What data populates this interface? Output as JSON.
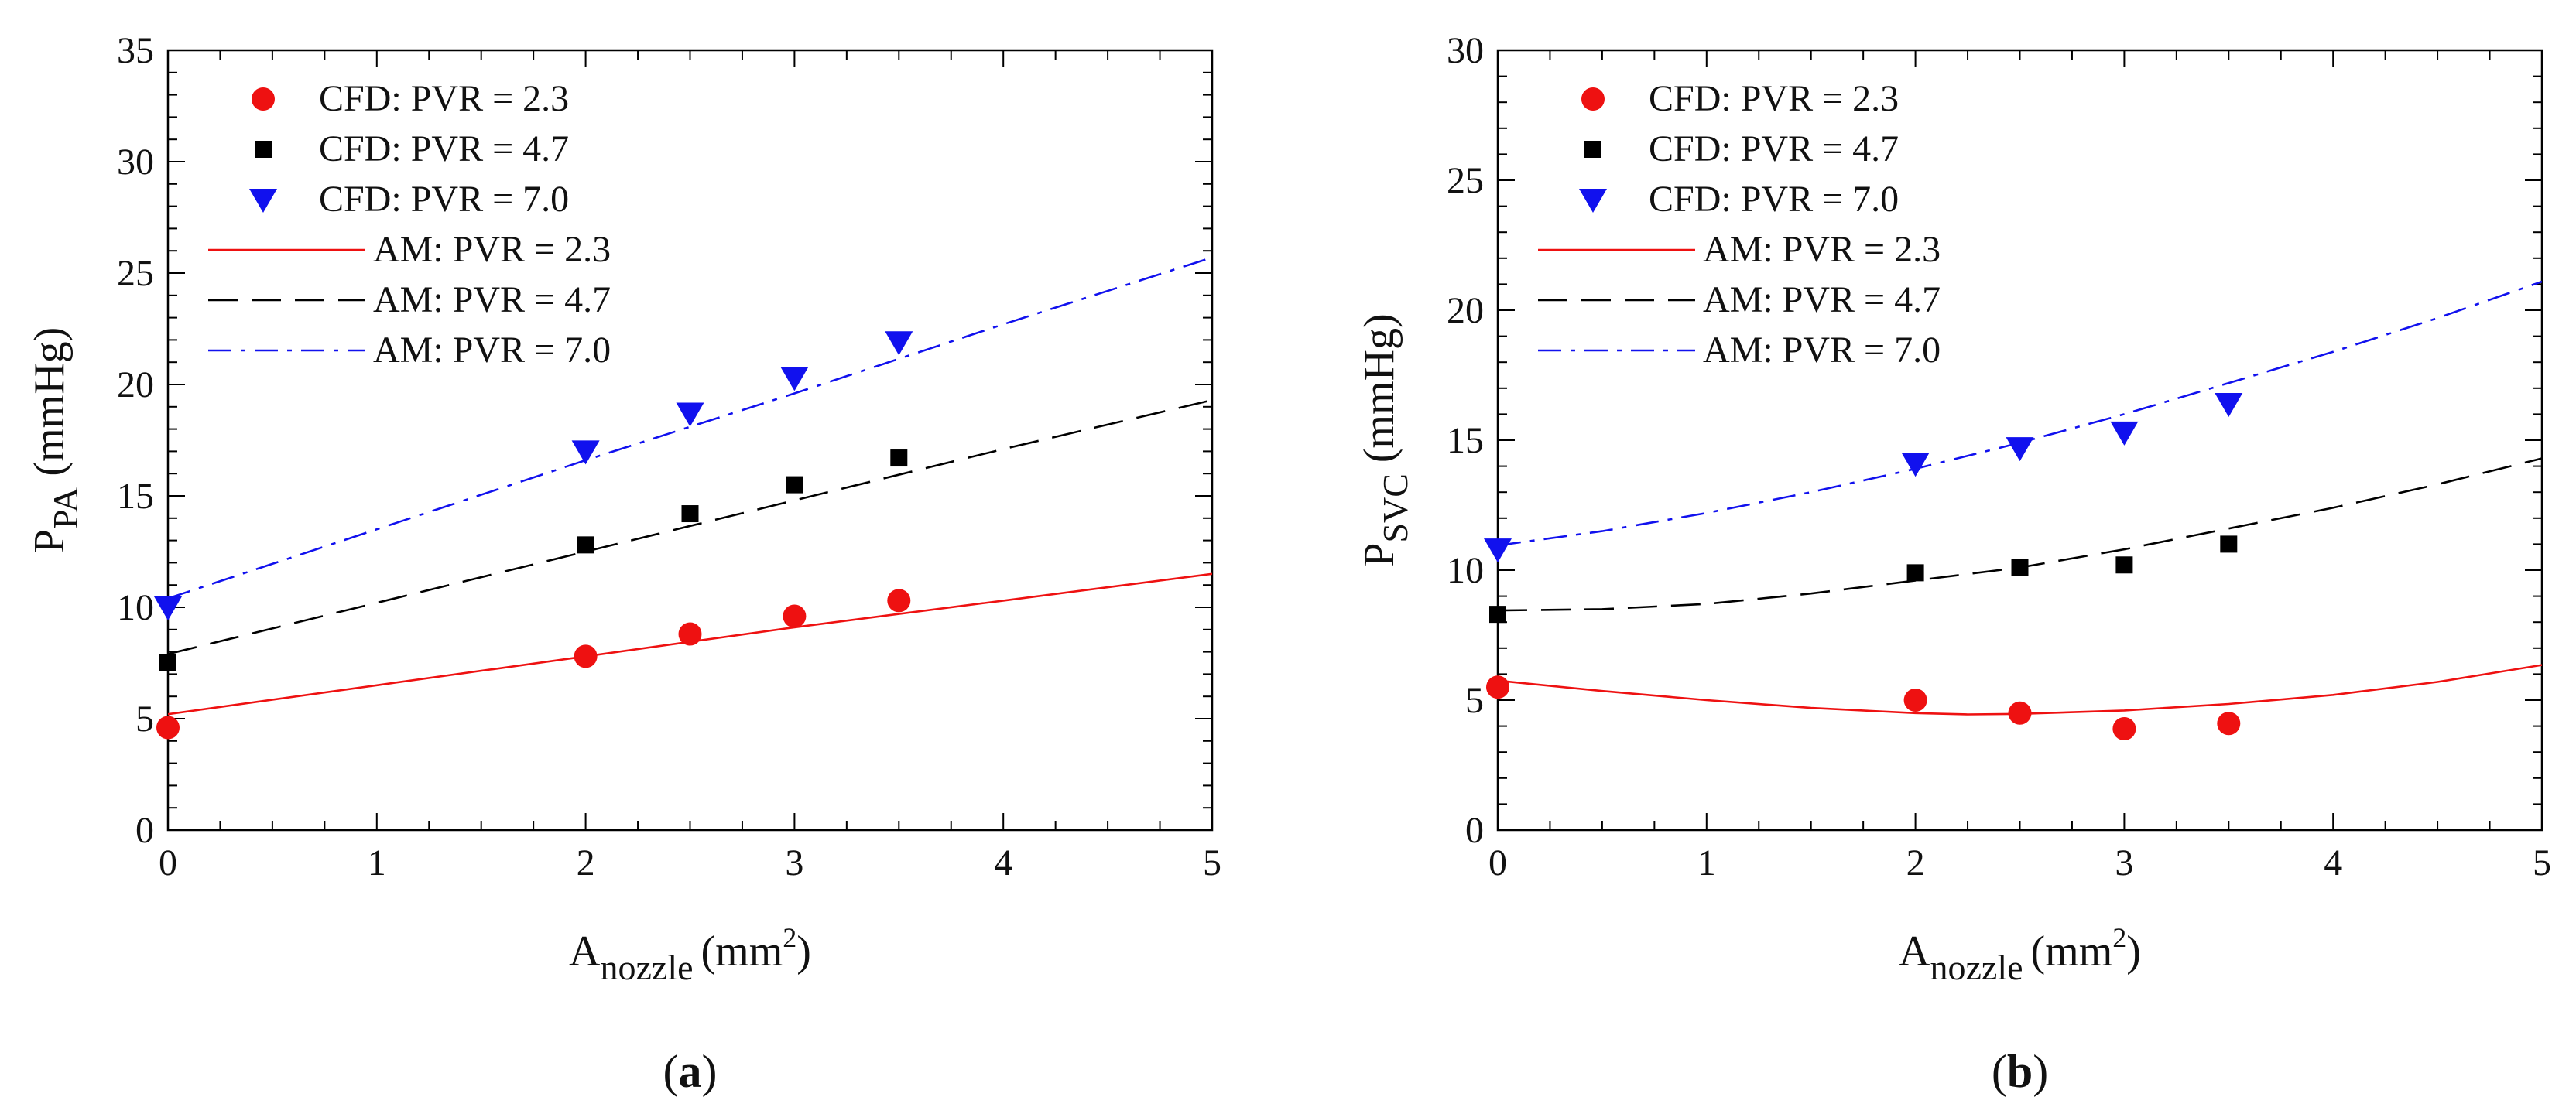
{
  "chart_data": [
    {
      "type": "scatter",
      "panel_label": "a",
      "x_label": {
        "base": "A",
        "sub": "nozzle",
        "unit_open": "(mm",
        "sup": "2",
        "unit_close": ")"
      },
      "y_label": {
        "base": "P",
        "sub": "PA",
        "unit": "(mmHg)"
      },
      "xlim": [
        0,
        5
      ],
      "ylim": [
        0,
        35
      ],
      "x_ticks": [
        0,
        1,
        2,
        3,
        4,
        5
      ],
      "y_ticks": [
        0,
        5,
        10,
        15,
        20,
        25,
        30,
        35
      ],
      "legend_position": "top-left",
      "colors": {
        "pvr23": "#ee1111",
        "pvr47": "#000000",
        "pvr70": "#1111ee"
      },
      "series": [
        {
          "name": "CFD: PVR = 2.3",
          "kind": "points",
          "marker": "circle",
          "color_key": "pvr23",
          "x": [
            0,
            2,
            2.5,
            3,
            3.5
          ],
          "y": [
            4.6,
            7.8,
            8.8,
            9.6,
            10.3
          ]
        },
        {
          "name": "CFD: PVR = 4.7",
          "kind": "points",
          "marker": "square",
          "color_key": "pvr47",
          "x": [
            0,
            2,
            2.5,
            3,
            3.5
          ],
          "y": [
            7.5,
            12.8,
            14.2,
            15.5,
            16.7
          ]
        },
        {
          "name": "CFD: PVR = 7.0",
          "kind": "points",
          "marker": "triangle-down",
          "color_key": "pvr70",
          "x": [
            0,
            2,
            2.5,
            3,
            3.5
          ],
          "y": [
            10.0,
            17.0,
            18.7,
            20.3,
            21.9
          ]
        },
        {
          "name": "AM: PVR = 2.3",
          "kind": "line",
          "dash": "solid",
          "color_key": "pvr23",
          "x": [
            0,
            1,
            2,
            3,
            4,
            5
          ],
          "y": [
            5.2,
            6.5,
            7.8,
            9.1,
            10.3,
            11.5
          ]
        },
        {
          "name": "AM: PVR = 4.7",
          "kind": "line",
          "dash": "dashed",
          "color_key": "pvr47",
          "x": [
            0,
            1,
            2,
            3,
            4,
            5
          ],
          "y": [
            7.9,
            10.2,
            12.5,
            14.8,
            17.1,
            19.3
          ]
        },
        {
          "name": "AM: PVR = 7.0",
          "kind": "line",
          "dash": "dashdot",
          "color_key": "pvr70",
          "x": [
            0,
            1,
            2,
            3,
            4,
            5
          ],
          "y": [
            10.4,
            13.5,
            16.6,
            19.6,
            22.7,
            25.7
          ]
        }
      ]
    },
    {
      "type": "scatter",
      "panel_label": "b",
      "x_label": {
        "base": "A",
        "sub": "nozzle",
        "unit_open": "(mm",
        "sup": "2",
        "unit_close": ")"
      },
      "y_label": {
        "base": "P",
        "sub": "SVC",
        "unit": "(mmHg)"
      },
      "xlim": [
        0,
        5
      ],
      "ylim": [
        0,
        30
      ],
      "x_ticks": [
        0,
        1,
        2,
        3,
        4,
        5
      ],
      "y_ticks": [
        0,
        5,
        10,
        15,
        20,
        25,
        30
      ],
      "legend_position": "top-left",
      "colors": {
        "pvr23": "#ee1111",
        "pvr47": "#000000",
        "pvr70": "#1111ee"
      },
      "series": [
        {
          "name": "CFD: PVR = 2.3",
          "kind": "points",
          "marker": "circle",
          "color_key": "pvr23",
          "x": [
            0,
            2,
            2.5,
            3,
            3.5
          ],
          "y": [
            5.5,
            5.0,
            4.5,
            3.9,
            4.1
          ]
        },
        {
          "name": "CFD: PVR = 4.7",
          "kind": "points",
          "marker": "square",
          "color_key": "pvr47",
          "x": [
            0,
            2,
            2.5,
            3,
            3.5
          ],
          "y": [
            8.3,
            9.9,
            10.1,
            10.2,
            11.0
          ]
        },
        {
          "name": "CFD: PVR = 7.0",
          "kind": "points",
          "marker": "triangle-down",
          "color_key": "pvr70",
          "x": [
            0,
            2,
            2.5,
            3,
            3.5
          ],
          "y": [
            10.8,
            14.1,
            14.7,
            15.3,
            16.4
          ]
        },
        {
          "name": "AM: PVR = 2.3",
          "kind": "line",
          "dash": "solid",
          "color_key": "pvr23",
          "x": [
            0,
            0.5,
            1,
            1.5,
            2,
            2.25,
            2.5,
            3,
            3.5,
            4,
            4.5,
            5
          ],
          "y": [
            5.75,
            5.35,
            5.0,
            4.7,
            4.5,
            4.45,
            4.47,
            4.6,
            4.85,
            5.2,
            5.7,
            6.35
          ]
        },
        {
          "name": "AM: PVR = 4.7",
          "kind": "line",
          "dash": "dashed",
          "color_key": "pvr47",
          "x": [
            0,
            0.5,
            1,
            1.5,
            2,
            2.5,
            3,
            3.5,
            4,
            4.5,
            5
          ],
          "y": [
            8.45,
            8.5,
            8.7,
            9.1,
            9.6,
            10.1,
            10.8,
            11.6,
            12.4,
            13.3,
            14.3
          ]
        },
        {
          "name": "AM: PVR = 7.0",
          "kind": "line",
          "dash": "dashdot",
          "color_key": "pvr70",
          "x": [
            0,
            0.5,
            1,
            1.5,
            2,
            2.5,
            3,
            3.5,
            4,
            4.5,
            5
          ],
          "y": [
            10.95,
            11.5,
            12.2,
            13.0,
            13.9,
            14.9,
            16.0,
            17.2,
            18.4,
            19.7,
            21.1
          ]
        }
      ]
    }
  ]
}
